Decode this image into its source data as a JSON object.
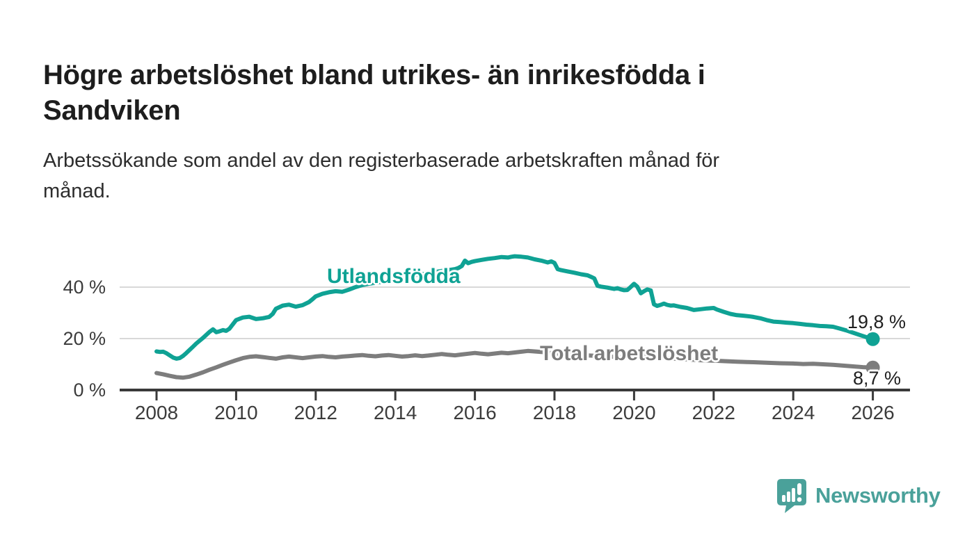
{
  "header": {
    "title_lines": [
      "Högre arbetslöshet bland utrikes- än inrikesfödda i",
      "Sandviken"
    ],
    "subtitle_lines": [
      "Arbetssökande som andel av den registerbaserade arbetskraften månad för",
      "månad."
    ]
  },
  "chart_data": {
    "type": "line",
    "title": "Högre arbetslöshet bland utrikes- än inrikesfödda i Sandviken",
    "subtitle": "Arbetssökande som andel av den registerbaserade arbetskraften månad för månad.",
    "ylabel": "",
    "xlabel": "",
    "grid": "horizontal-only",
    "colors": {
      "grid": "#d8d8d8",
      "axis": "#3a3a3a",
      "tick_text": "#3c3c3c",
      "end_label_text": "#1f1f1f"
    },
    "y_axis": {
      "range": [
        0,
        54
      ],
      "ticks": [
        {
          "value": 0,
          "label": "0 %"
        },
        {
          "value": 20,
          "label": "20 %"
        },
        {
          "value": 40,
          "label": "40 %"
        }
      ]
    },
    "x_axis": {
      "range": [
        2007.1,
        2026.9
      ],
      "ticks": [
        {
          "value": 2008,
          "label": "2008"
        },
        {
          "value": 2010,
          "label": "2010"
        },
        {
          "value": 2012,
          "label": "2012"
        },
        {
          "value": 2014,
          "label": "2014"
        },
        {
          "value": 2016,
          "label": "2016"
        },
        {
          "value": 2018,
          "label": "2018"
        },
        {
          "value": 2020,
          "label": "2020"
        },
        {
          "value": 2022,
          "label": "2022"
        },
        {
          "value": 2024,
          "label": "2024"
        },
        {
          "value": 2026,
          "label": "2026"
        }
      ]
    },
    "series": [
      {
        "name": "Utlandsfödda",
        "color": "#0fa294",
        "end_label": "19,8 %",
        "end_value": 19.8,
        "points": [
          [
            2008.0,
            15.0
          ],
          [
            2008.08,
            14.8
          ],
          [
            2008.17,
            14.9
          ],
          [
            2008.25,
            14.3
          ],
          [
            2008.33,
            13.5
          ],
          [
            2008.42,
            12.6
          ],
          [
            2008.5,
            12.2
          ],
          [
            2008.58,
            12.4
          ],
          [
            2008.67,
            13.3
          ],
          [
            2008.75,
            14.4
          ],
          [
            2008.83,
            15.6
          ],
          [
            2008.92,
            16.9
          ],
          [
            2009.0,
            18.1
          ],
          [
            2009.17,
            20.3
          ],
          [
            2009.33,
            22.6
          ],
          [
            2009.42,
            23.6
          ],
          [
            2009.5,
            22.5
          ],
          [
            2009.58,
            22.8
          ],
          [
            2009.67,
            23.3
          ],
          [
            2009.75,
            23.0
          ],
          [
            2009.83,
            23.8
          ],
          [
            2009.92,
            25.6
          ],
          [
            2010.0,
            27.2
          ],
          [
            2010.17,
            28.2
          ],
          [
            2010.33,
            28.5
          ],
          [
            2010.5,
            27.6
          ],
          [
            2010.67,
            27.9
          ],
          [
            2010.83,
            28.4
          ],
          [
            2010.92,
            29.6
          ],
          [
            2011.0,
            31.6
          ],
          [
            2011.17,
            32.8
          ],
          [
            2011.33,
            33.2
          ],
          [
            2011.5,
            32.4
          ],
          [
            2011.67,
            33.0
          ],
          [
            2011.83,
            34.2
          ],
          [
            2011.92,
            35.3
          ],
          [
            2012.0,
            36.4
          ],
          [
            2012.17,
            37.4
          ],
          [
            2012.33,
            38.0
          ],
          [
            2012.5,
            38.4
          ],
          [
            2012.67,
            38.2
          ],
          [
            2012.83,
            39.0
          ],
          [
            2013.0,
            40.0
          ],
          [
            2013.17,
            40.8
          ],
          [
            2013.33,
            41.3
          ],
          [
            2013.5,
            41.7
          ],
          [
            2013.67,
            42.0
          ],
          [
            2013.83,
            42.6
          ],
          [
            2014.0,
            43.3
          ],
          [
            2014.17,
            43.9
          ],
          [
            2014.33,
            44.3
          ],
          [
            2014.5,
            44.7
          ],
          [
            2014.67,
            45.0
          ],
          [
            2014.83,
            45.4
          ],
          [
            2015.0,
            45.9
          ],
          [
            2015.17,
            46.3
          ],
          [
            2015.33,
            46.6
          ],
          [
            2015.5,
            47.0
          ],
          [
            2015.58,
            47.4
          ],
          [
            2015.67,
            48.2
          ],
          [
            2015.75,
            50.3
          ],
          [
            2015.83,
            49.3
          ],
          [
            2015.92,
            49.8
          ],
          [
            2016.0,
            50.1
          ],
          [
            2016.17,
            50.6
          ],
          [
            2016.33,
            51.0
          ],
          [
            2016.5,
            51.3
          ],
          [
            2016.67,
            51.7
          ],
          [
            2016.83,
            51.5
          ],
          [
            2016.92,
            51.8
          ],
          [
            2017.0,
            52.0
          ],
          [
            2017.17,
            51.8
          ],
          [
            2017.33,
            51.5
          ],
          [
            2017.5,
            50.8
          ],
          [
            2017.67,
            50.3
          ],
          [
            2017.83,
            49.6
          ],
          [
            2017.92,
            50.0
          ],
          [
            2018.0,
            49.4
          ],
          [
            2018.08,
            47.0
          ],
          [
            2018.17,
            46.6
          ],
          [
            2018.33,
            46.1
          ],
          [
            2018.5,
            45.6
          ],
          [
            2018.67,
            45.0
          ],
          [
            2018.83,
            44.6
          ],
          [
            2018.92,
            44.0
          ],
          [
            2019.0,
            43.4
          ],
          [
            2019.08,
            40.5
          ],
          [
            2019.17,
            40.2
          ],
          [
            2019.33,
            39.8
          ],
          [
            2019.5,
            39.3
          ],
          [
            2019.58,
            39.6
          ],
          [
            2019.67,
            39.1
          ],
          [
            2019.75,
            38.8
          ],
          [
            2019.83,
            38.9
          ],
          [
            2019.92,
            40.1
          ],
          [
            2020.0,
            41.3
          ],
          [
            2020.08,
            40.2
          ],
          [
            2020.17,
            37.6
          ],
          [
            2020.25,
            38.4
          ],
          [
            2020.33,
            39.1
          ],
          [
            2020.42,
            38.7
          ],
          [
            2020.5,
            33.3
          ],
          [
            2020.58,
            32.7
          ],
          [
            2020.67,
            33.1
          ],
          [
            2020.75,
            33.6
          ],
          [
            2020.83,
            33.1
          ],
          [
            2020.92,
            32.8
          ],
          [
            2021.0,
            32.9
          ],
          [
            2021.17,
            32.3
          ],
          [
            2021.33,
            31.9
          ],
          [
            2021.5,
            31.1
          ],
          [
            2021.67,
            31.4
          ],
          [
            2021.83,
            31.7
          ],
          [
            2022.0,
            31.9
          ],
          [
            2022.08,
            31.3
          ],
          [
            2022.25,
            30.4
          ],
          [
            2022.42,
            29.6
          ],
          [
            2022.58,
            29.1
          ],
          [
            2022.75,
            28.9
          ],
          [
            2022.92,
            28.6
          ],
          [
            2023.0,
            28.4
          ],
          [
            2023.17,
            27.9
          ],
          [
            2023.33,
            27.2
          ],
          [
            2023.5,
            26.6
          ],
          [
            2023.67,
            26.4
          ],
          [
            2023.83,
            26.2
          ],
          [
            2024.0,
            26.0
          ],
          [
            2024.17,
            25.7
          ],
          [
            2024.33,
            25.4
          ],
          [
            2024.5,
            25.2
          ],
          [
            2024.67,
            24.9
          ],
          [
            2024.83,
            24.8
          ],
          [
            2025.0,
            24.6
          ],
          [
            2025.17,
            23.9
          ],
          [
            2025.33,
            23.2
          ],
          [
            2025.5,
            22.3
          ],
          [
            2025.67,
            21.4
          ],
          [
            2025.83,
            20.6
          ],
          [
            2025.92,
            20.1
          ],
          [
            2026.0,
            19.8
          ]
        ]
      },
      {
        "name": "Total arbetslöshet",
        "color": "#7d7d7d",
        "end_label": "8,7 %",
        "end_value": 8.7,
        "points": [
          [
            2008.0,
            6.6
          ],
          [
            2008.17,
            6.1
          ],
          [
            2008.33,
            5.5
          ],
          [
            2008.5,
            5.0
          ],
          [
            2008.67,
            4.8
          ],
          [
            2008.83,
            5.2
          ],
          [
            2009.0,
            6.0
          ],
          [
            2009.17,
            6.9
          ],
          [
            2009.33,
            7.9
          ],
          [
            2009.5,
            8.8
          ],
          [
            2009.67,
            9.8
          ],
          [
            2009.83,
            10.7
          ],
          [
            2010.0,
            11.6
          ],
          [
            2010.17,
            12.4
          ],
          [
            2010.33,
            12.9
          ],
          [
            2010.5,
            13.1
          ],
          [
            2010.67,
            12.8
          ],
          [
            2010.83,
            12.5
          ],
          [
            2011.0,
            12.2
          ],
          [
            2011.17,
            12.7
          ],
          [
            2011.33,
            13.0
          ],
          [
            2011.5,
            12.7
          ],
          [
            2011.67,
            12.4
          ],
          [
            2011.83,
            12.7
          ],
          [
            2012.0,
            13.0
          ],
          [
            2012.17,
            13.2
          ],
          [
            2012.33,
            12.9
          ],
          [
            2012.5,
            12.7
          ],
          [
            2012.67,
            13.0
          ],
          [
            2012.83,
            13.2
          ],
          [
            2013.0,
            13.4
          ],
          [
            2013.17,
            13.6
          ],
          [
            2013.33,
            13.3
          ],
          [
            2013.5,
            13.1
          ],
          [
            2013.67,
            13.4
          ],
          [
            2013.83,
            13.6
          ],
          [
            2014.0,
            13.3
          ],
          [
            2014.17,
            13.0
          ],
          [
            2014.33,
            13.2
          ],
          [
            2014.5,
            13.5
          ],
          [
            2014.67,
            13.2
          ],
          [
            2014.83,
            13.4
          ],
          [
            2015.0,
            13.7
          ],
          [
            2015.17,
            14.0
          ],
          [
            2015.33,
            13.7
          ],
          [
            2015.5,
            13.5
          ],
          [
            2015.67,
            13.8
          ],
          [
            2015.83,
            14.1
          ],
          [
            2016.0,
            14.4
          ],
          [
            2016.17,
            14.1
          ],
          [
            2016.33,
            13.9
          ],
          [
            2016.5,
            14.2
          ],
          [
            2016.67,
            14.5
          ],
          [
            2016.83,
            14.3
          ],
          [
            2017.0,
            14.6
          ],
          [
            2017.17,
            14.9
          ],
          [
            2017.33,
            15.2
          ],
          [
            2017.5,
            15.0
          ],
          [
            2017.67,
            14.8
          ],
          [
            2017.83,
            14.5
          ],
          [
            2018.0,
            14.2
          ],
          [
            2018.33,
            13.9
          ],
          [
            2018.67,
            13.6
          ],
          [
            2019.0,
            13.3
          ],
          [
            2019.33,
            13.0
          ],
          [
            2019.67,
            12.8
          ],
          [
            2020.0,
            12.9
          ],
          [
            2020.25,
            13.2
          ],
          [
            2020.5,
            12.9
          ],
          [
            2020.75,
            12.6
          ],
          [
            2021.0,
            12.2
          ],
          [
            2021.33,
            11.9
          ],
          [
            2021.67,
            11.6
          ],
          [
            2022.0,
            11.4
          ],
          [
            2022.33,
            11.2
          ],
          [
            2022.58,
            11.0
          ],
          [
            2022.83,
            10.9
          ],
          [
            2023.0,
            10.8
          ],
          [
            2023.33,
            10.6
          ],
          [
            2023.67,
            10.4
          ],
          [
            2024.0,
            10.3
          ],
          [
            2024.25,
            10.1
          ],
          [
            2024.5,
            10.2
          ],
          [
            2024.75,
            10.0
          ],
          [
            2025.0,
            9.8
          ],
          [
            2025.25,
            9.5
          ],
          [
            2025.5,
            9.2
          ],
          [
            2025.75,
            8.9
          ],
          [
            2026.0,
            8.7
          ]
        ]
      }
    ],
    "legend_position": "inline-labels-on-lines"
  },
  "branding": {
    "logo_text": "Newsworthy",
    "logo_color": "#4aa19a",
    "logo_icon": "speech-bubble-bar-chart-exclamation"
  }
}
